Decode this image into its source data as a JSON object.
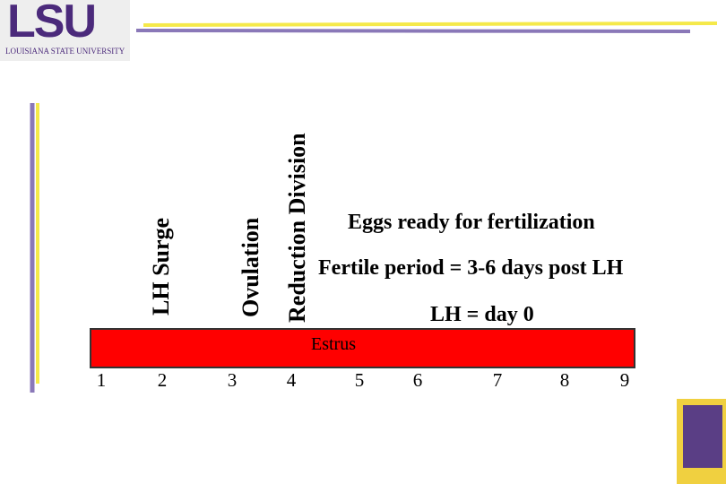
{
  "header": {
    "logo": "LSU",
    "university": "LOUISIANA STATE UNIVERSITY"
  },
  "events": [
    "LH Surge",
    "Ovulation",
    "Reduction Division"
  ],
  "notes": [
    "Eggs ready for fertilization",
    "Fertile period = 3-6 days post LH",
    "LH = day 0"
  ],
  "bar": {
    "label": "Estrus"
  },
  "days": [
    "1",
    "2",
    "3",
    "4",
    "5",
    "6",
    "7",
    "8",
    "9"
  ]
}
